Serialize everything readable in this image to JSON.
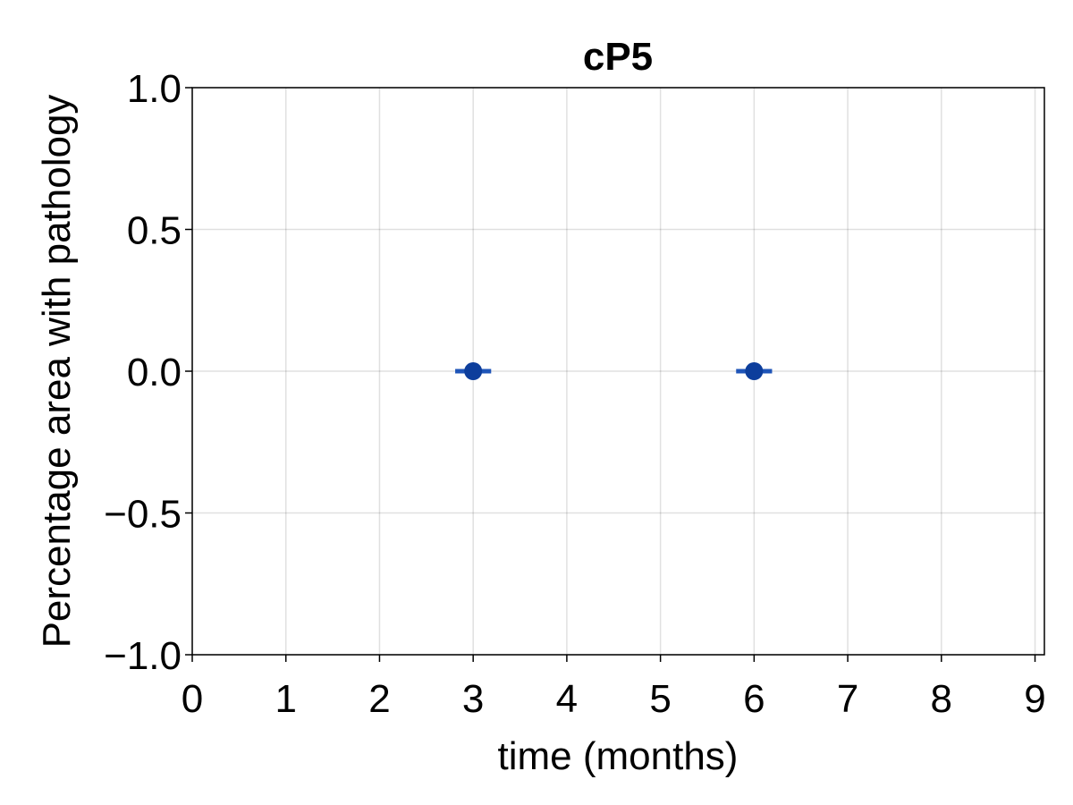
{
  "chart_data": {
    "type": "scatter",
    "title": "cP5",
    "xlabel": "time (months)",
    "ylabel": "Percentage area with pathology",
    "xlim": [
      0,
      9.1
    ],
    "ylim": [
      -1.0,
      1.0
    ],
    "xticks": [
      0,
      1,
      2,
      3,
      4,
      5,
      6,
      7,
      8,
      9
    ],
    "xtick_labels": [
      "0",
      "1",
      "2",
      "3",
      "4",
      "5",
      "6",
      "7",
      "8",
      "9"
    ],
    "yticks": [
      -1.0,
      -0.5,
      0.0,
      0.5,
      1.0
    ],
    "ytick_labels": [
      "−1.0",
      "−0.5",
      "0.0",
      "0.5",
      "1.0"
    ],
    "grid": true,
    "series": [
      {
        "color": "#0d3e9c",
        "errorbar_color": "#1f55b8",
        "x": [
          3,
          6
        ],
        "y": [
          0.0,
          0.0
        ],
        "yerr": [
          0.0,
          0.0
        ]
      }
    ]
  }
}
